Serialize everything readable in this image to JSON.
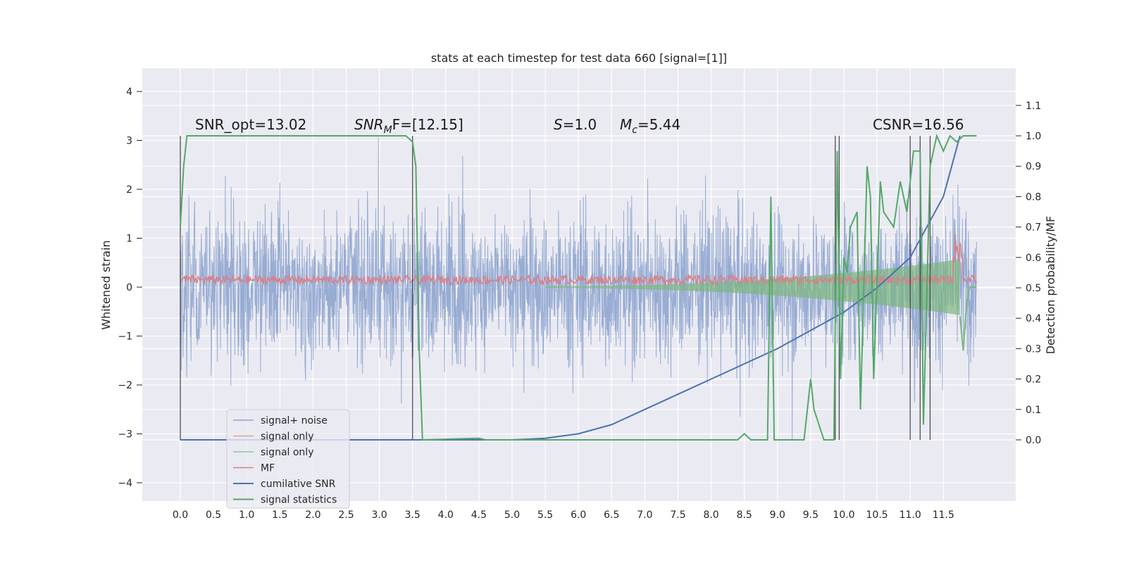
{
  "chart_data": {
    "type": "line",
    "title": "stats at each timestep for test data 660 [signal=[1]]",
    "ylabel": "Whitened strain",
    "ylabel_right": "Detection probability/MF",
    "xlim": [
      -0.5,
      12.5
    ],
    "ylim": [
      -4.4,
      4.4
    ],
    "ylim_right": [
      -0.15,
      1.17
    ],
    "grid": true,
    "legend_position": "lower-left",
    "x_ticks": [
      "0.0",
      "0.5",
      "1.0",
      "1.5",
      "2.0",
      "2.5",
      "3.0",
      "3.5",
      "4.0",
      "4.5",
      "5.0",
      "5.5",
      "6.0",
      "6.5",
      "7.0",
      "7.5",
      "8.0",
      "8.5",
      "9.0",
      "9.5",
      "10.0",
      "10.5",
      "11.0",
      "11.5"
    ],
    "y_ticks": [
      "4",
      "3",
      "2",
      "1",
      "0",
      "−1",
      "−2",
      "−3",
      "−4"
    ],
    "y_ticks_right": [
      "1.1",
      "1.0",
      "0.9",
      "0.8",
      "0.7",
      "0.6",
      "0.5",
      "0.4",
      "0.3",
      "0.2",
      "0.1",
      "0.0"
    ],
    "annotations": {
      "snr_opt": "SNR_opt=13.02",
      "snr_mf_var": "SNR",
      "snr_mf_sub": "M",
      "snr_mf_tail": "F=[12.15]",
      "s_var": "S",
      "s_tail": "=1.0",
      "mc_var": "M",
      "mc_sub": "c",
      "mc_tail": "=5.44",
      "csnr": "CSNR=16.56"
    },
    "legend": [
      {
        "label": "signal+ noise",
        "color": "#8fa5cf"
      },
      {
        "label": "signal only",
        "color": "#e3a487"
      },
      {
        "label": "signal only",
        "color": "#8fc49b"
      },
      {
        "label": "MF",
        "color": "#d98086"
      },
      {
        "label": "cumilative SNR",
        "color": "#4c72b0"
      },
      {
        "label": "signal statistics",
        "color": "#55a868"
      }
    ],
    "series": [
      {
        "name": "signal+ noise",
        "x_range": [
          0.0,
          12.0
        ],
        "y_envelope": [
          -3.0,
          3.1
        ]
      },
      {
        "name": "MF",
        "x_range": [
          0.0,
          12.0
        ],
        "approx_level": 0.15
      },
      {
        "name": "cumilative SNR",
        "points": [
          [
            0.0,
            0.0
          ],
          [
            5.0,
            0.0
          ],
          [
            5.5,
            0.005
          ],
          [
            6.0,
            0.02
          ],
          [
            6.5,
            0.05
          ],
          [
            7.0,
            0.1
          ],
          [
            7.5,
            0.15
          ],
          [
            8.0,
            0.2
          ],
          [
            8.5,
            0.25
          ],
          [
            9.0,
            0.3
          ],
          [
            9.5,
            0.36
          ],
          [
            10.0,
            0.42
          ],
          [
            10.5,
            0.5
          ],
          [
            11.0,
            0.6
          ],
          [
            11.5,
            0.8
          ],
          [
            11.75,
            1.0
          ]
        ]
      },
      {
        "name": "signal statistics",
        "points": [
          [
            0.0,
            0.7
          ],
          [
            0.05,
            0.9
          ],
          [
            0.1,
            1.0
          ],
          [
            3.4,
            1.0
          ],
          [
            3.5,
            0.98
          ],
          [
            3.55,
            0.9
          ],
          [
            3.6,
            0.3
          ],
          [
            3.65,
            0.0
          ],
          [
            4.5,
            0.005
          ],
          [
            4.6,
            0.0
          ],
          [
            8.4,
            0.0
          ],
          [
            8.5,
            0.02
          ],
          [
            8.6,
            0.0
          ],
          [
            8.85,
            0.0
          ],
          [
            8.9,
            0.8
          ],
          [
            8.95,
            0.0
          ],
          [
            9.4,
            0.0
          ],
          [
            9.5,
            0.2
          ],
          [
            9.55,
            0.1
          ],
          [
            9.7,
            0.0
          ],
          [
            9.85,
            0.0
          ],
          [
            9.9,
            0.95
          ],
          [
            9.95,
            0.2
          ],
          [
            10.0,
            0.6
          ],
          [
            10.05,
            0.55
          ],
          [
            10.1,
            0.7
          ],
          [
            10.2,
            0.75
          ],
          [
            10.25,
            0.1
          ],
          [
            10.35,
            0.9
          ],
          [
            10.4,
            0.8
          ],
          [
            10.45,
            0.2
          ],
          [
            10.55,
            0.85
          ],
          [
            10.6,
            0.75
          ],
          [
            10.75,
            0.7
          ],
          [
            10.85,
            0.85
          ],
          [
            10.95,
            0.75
          ],
          [
            11.05,
            0.95
          ],
          [
            11.15,
            0.95
          ],
          [
            11.2,
            0.05
          ],
          [
            11.3,
            0.9
          ],
          [
            11.4,
            1.0
          ],
          [
            11.5,
            0.95
          ],
          [
            11.6,
            1.0
          ],
          [
            11.7,
            0.98
          ],
          [
            11.8,
            1.0
          ],
          [
            12.0,
            1.0
          ]
        ]
      }
    ],
    "vertical_markers_x": [
      0.0,
      3.5,
      9.87,
      9.93,
      11.0,
      11.15,
      11.3
    ]
  }
}
